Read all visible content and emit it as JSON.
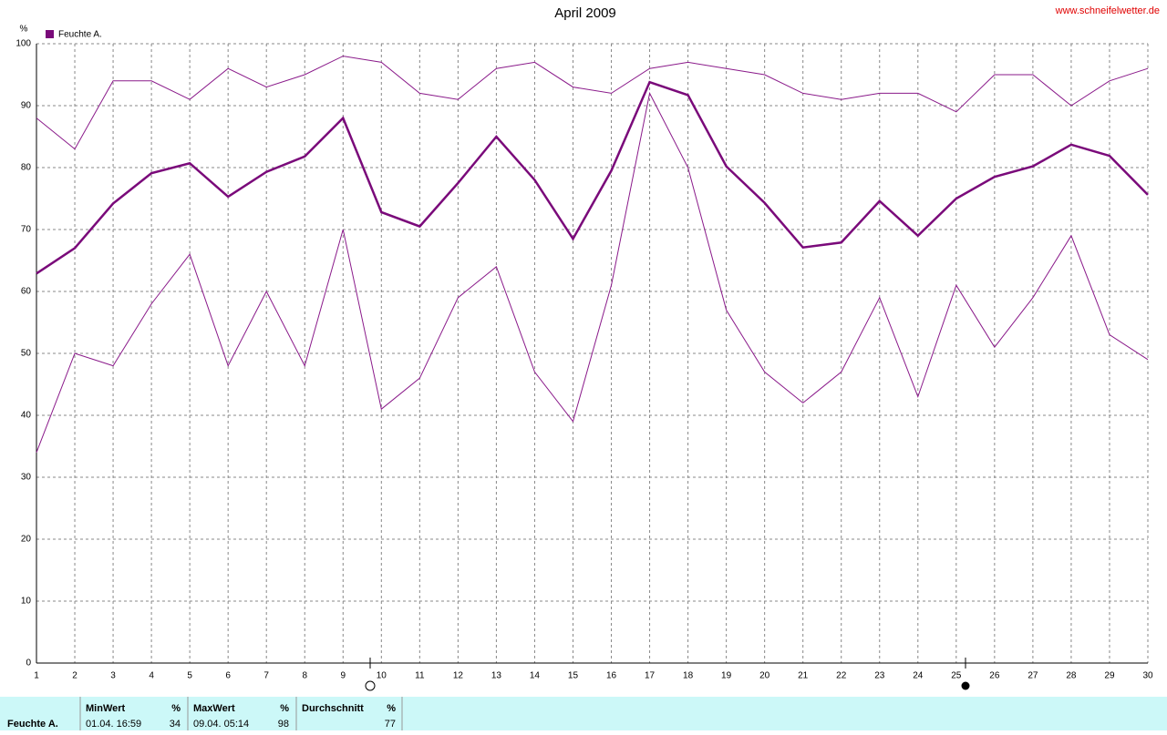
{
  "chart_data": {
    "type": "line",
    "title": "April 2009",
    "y_label": "%",
    "source": "www.schneifelwetter.de",
    "x": [
      1,
      2,
      3,
      4,
      5,
      6,
      7,
      8,
      9,
      10,
      11,
      12,
      13,
      14,
      15,
      16,
      17,
      18,
      19,
      20,
      21,
      22,
      23,
      24,
      25,
      26,
      27,
      28,
      29,
      30
    ],
    "series": [
      {
        "name": "Feuchte A.",
        "color": "#7a0a7a",
        "line_width": 2.5,
        "values": [
          62.9,
          67,
          74.2,
          79.1,
          80.7,
          75.3,
          79.3,
          81.8,
          88,
          72.8,
          70.5,
          77.5,
          85,
          78,
          68.5,
          79.5,
          93.8,
          91.7,
          80.2,
          74.3,
          67.1,
          67.9,
          74.6,
          69,
          75,
          78.5,
          80.2,
          83.7,
          81.9,
          75.6
        ]
      },
      {
        "color": "#8a1a8a",
        "line_width": 1,
        "values": [
          88,
          83,
          94,
          94,
          91,
          96,
          93,
          95,
          98,
          97,
          92,
          91,
          96,
          97,
          93,
          92,
          96,
          97,
          96,
          95,
          92,
          91,
          92,
          92,
          89,
          95,
          95,
          90,
          94,
          96
        ]
      },
      {
        "color": "#8a1a8a",
        "line_width": 1,
        "values": [
          34,
          50,
          48,
          58,
          66,
          48,
          60,
          48,
          70,
          41,
          46,
          59,
          64,
          47,
          39,
          61,
          92,
          80,
          57,
          47,
          42,
          47,
          59,
          43,
          61,
          51,
          59,
          69,
          53,
          49
        ]
      }
    ],
    "xlim": [
      1,
      30
    ],
    "xticks": [
      1,
      2,
      3,
      4,
      5,
      6,
      7,
      8,
      9,
      10,
      11,
      12,
      13,
      14,
      15,
      16,
      17,
      18,
      19,
      20,
      21,
      22,
      23,
      24,
      25,
      26,
      27,
      28,
      29,
      30
    ],
    "ylim": [
      0,
      100
    ],
    "yticks": [
      0,
      10,
      20,
      30,
      40,
      50,
      60,
      70,
      80,
      90,
      100
    ],
    "grid": true
  },
  "summary": {
    "label": "Feuchte A.",
    "columns": [
      {
        "header": "MinWert",
        "unit": "%",
        "time": "01.04. 16:59",
        "value": 34
      },
      {
        "header": "MaxWert",
        "unit": "%",
        "time": "09.04. 05:14",
        "value": 98
      },
      {
        "header": "Durchschnitt",
        "unit": "%",
        "value": 77
      }
    ]
  }
}
